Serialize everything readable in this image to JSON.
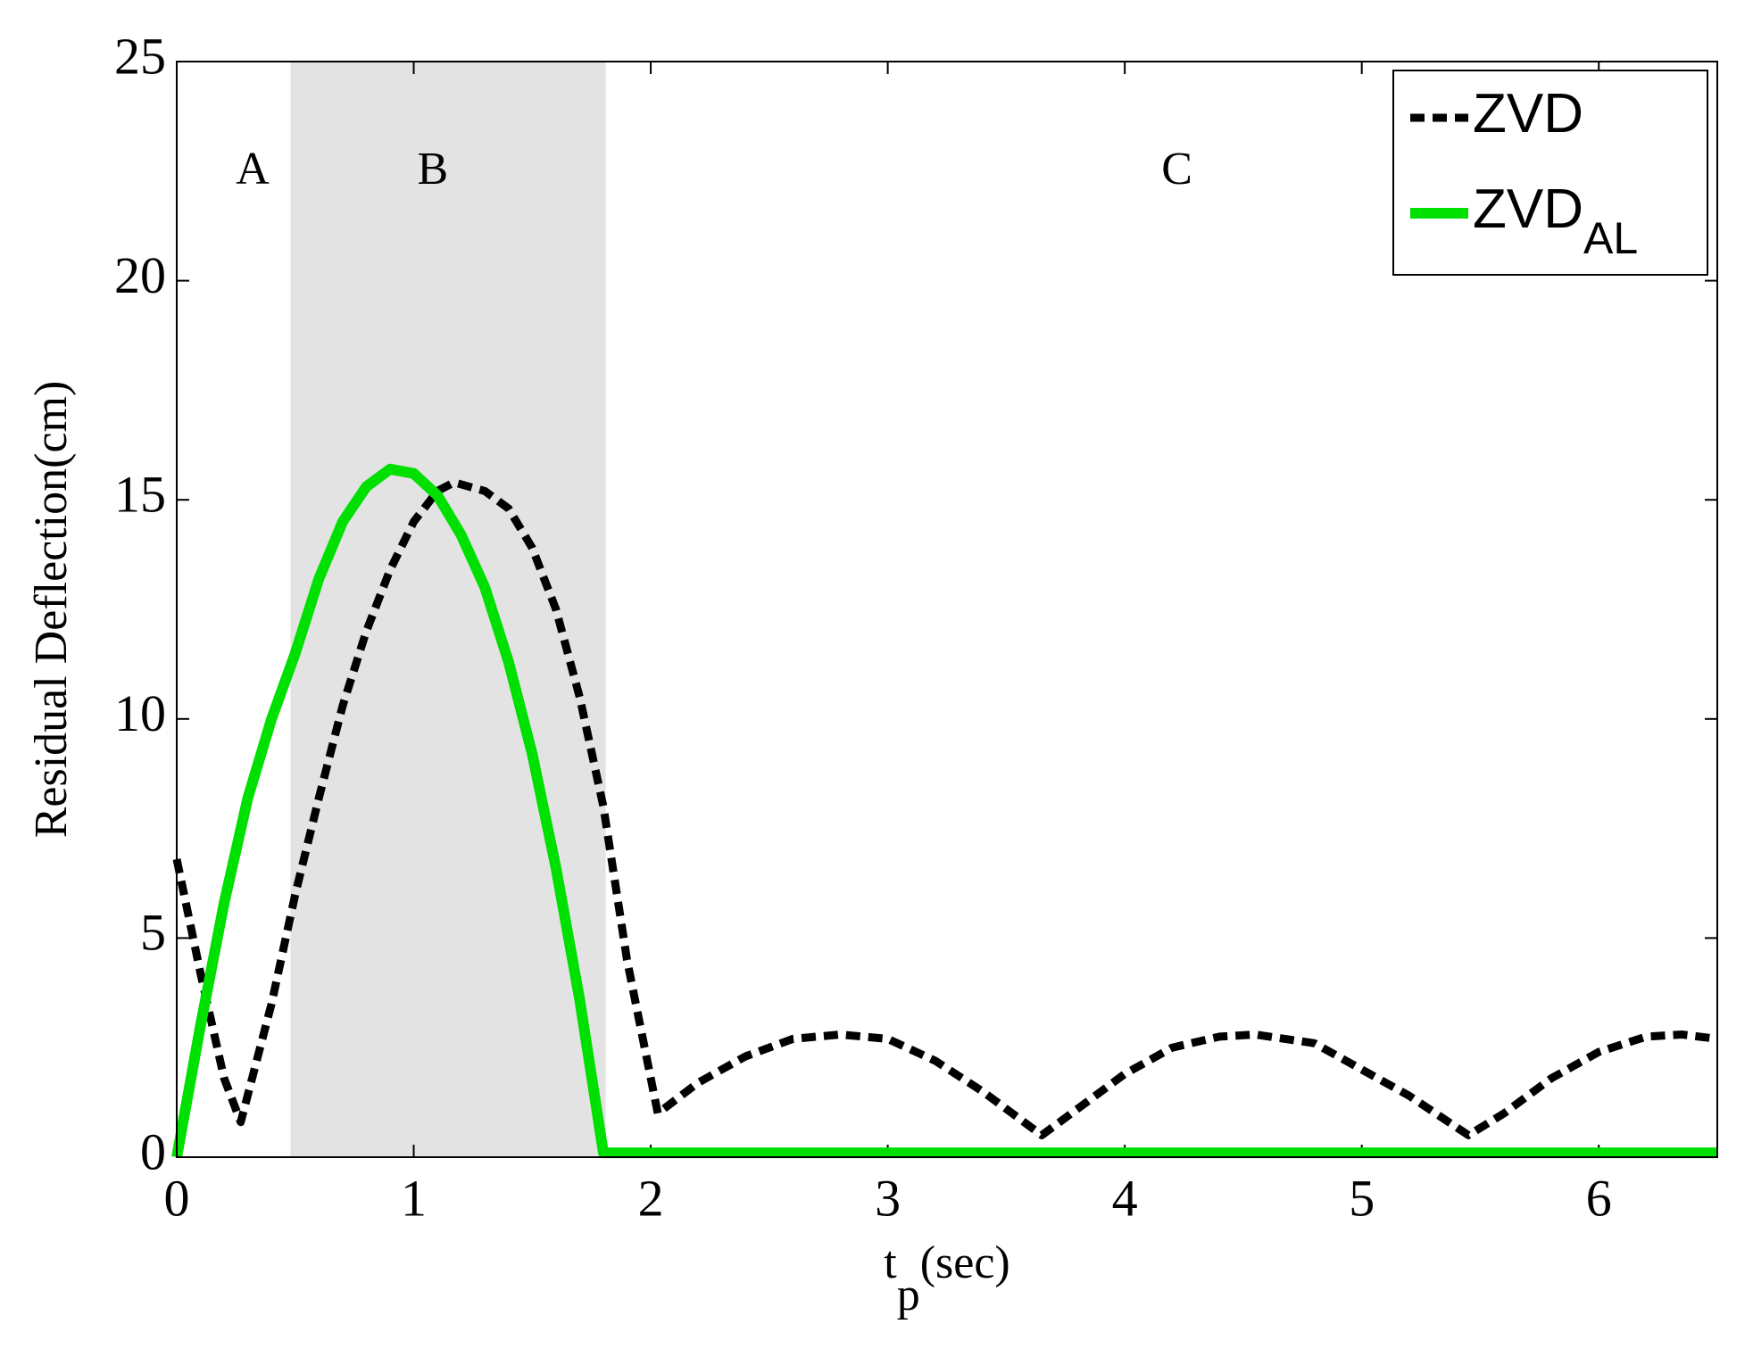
{
  "chart_data": {
    "type": "line",
    "ylabel": "Residual Deflection(cm)",
    "xlabel": {
      "main": "t",
      "sub": "p",
      "suffix": "(sec)"
    },
    "xlim": [
      0,
      6.5
    ],
    "ylim": [
      0,
      25
    ],
    "xticks": [
      0,
      1,
      2,
      3,
      4,
      5,
      6
    ],
    "yticks": [
      0,
      5,
      10,
      15,
      20,
      25
    ],
    "shaded_region": {
      "x": [
        0.48,
        1.81
      ],
      "color": "#e3e3e3"
    },
    "region_labels": [
      {
        "text": "A",
        "x": 0.32,
        "y": 22.45
      },
      {
        "text": "B",
        "x": 1.08,
        "y": 22.45
      },
      {
        "text": "C",
        "x": 4.22,
        "y": 22.45
      }
    ],
    "legend_position": "upper right",
    "series": [
      {
        "name": "ZVD",
        "color": "#000000",
        "dash": true,
        "x": [
          0,
          0.1,
          0.2,
          0.27,
          0.4,
          0.5,
          0.6,
          0.7,
          0.8,
          0.9,
          1.0,
          1.1,
          1.17,
          1.3,
          1.4,
          1.5,
          1.6,
          1.7,
          1.8,
          1.9,
          2.03,
          2.2,
          2.4,
          2.6,
          2.8,
          3.0,
          3.2,
          3.4,
          3.65,
          3.8,
          4.0,
          4.2,
          4.4,
          4.55,
          4.8,
          5.0,
          5.2,
          5.45,
          5.6,
          5.8,
          6.0,
          6.2,
          6.35,
          6.5
        ],
        "values": [
          6.8,
          4.2,
          1.8,
          0.8,
          3.5,
          6.0,
          8.2,
          10.3,
          12.0,
          13.4,
          14.5,
          15.2,
          15.4,
          15.2,
          14.8,
          13.9,
          12.5,
          10.5,
          8.0,
          4.5,
          1.0,
          1.7,
          2.3,
          2.7,
          2.8,
          2.7,
          2.2,
          1.5,
          0.5,
          1.1,
          1.9,
          2.5,
          2.75,
          2.8,
          2.6,
          2.0,
          1.4,
          0.5,
          1.0,
          1.8,
          2.4,
          2.75,
          2.8,
          2.7
        ]
      },
      {
        "name": "ZVD",
        "name_sub": "AL",
        "color": "#00e000",
        "dash": false,
        "x": [
          0,
          0.1,
          0.2,
          0.3,
          0.4,
          0.5,
          0.6,
          0.7,
          0.8,
          0.9,
          1.0,
          1.1,
          1.2,
          1.3,
          1.4,
          1.5,
          1.6,
          1.7,
          1.8,
          6.5
        ],
        "values": [
          0,
          3.0,
          5.8,
          8.2,
          10.0,
          11.5,
          13.2,
          14.5,
          15.3,
          15.7,
          15.6,
          15.1,
          14.2,
          13.0,
          11.3,
          9.2,
          6.6,
          3.6,
          0.1,
          0.1
        ]
      }
    ]
  }
}
